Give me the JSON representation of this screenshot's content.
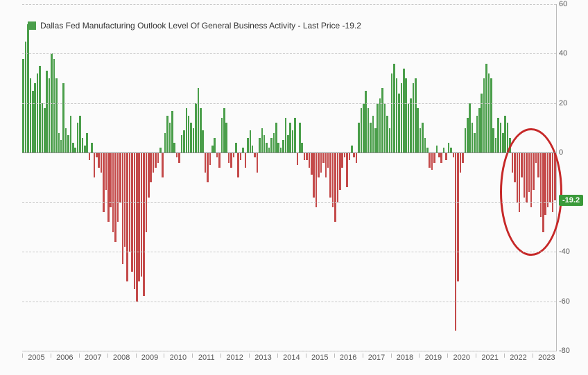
{
  "chart": {
    "type": "bar",
    "title_legend": "Dallas Fed Manufacturing Outlook Level Of General Business Activity - Last Price  -19.2",
    "legend_fontsize": 12,
    "background_color": "#fbfbfb",
    "grid_color": "#c8c8c8",
    "axis_color": "#bbbbbb",
    "text_color": "#555555",
    "positive_color": "#4a9e4a",
    "negative_color": "#c44a4a",
    "callout_color": "#c62828",
    "last_price_bg": "#3a9a3a",
    "last_price_value": "-19.2",
    "y_axis": {
      "min": -80,
      "max": 60,
      "step": 20,
      "ticks": [
        60,
        40,
        20,
        0,
        -20,
        -40,
        -60,
        -80
      ]
    },
    "x_axis": {
      "labels": [
        "2005",
        "2006",
        "2007",
        "2008",
        "2009",
        "2010",
        "2011",
        "2012",
        "2013",
        "2014",
        "2015",
        "2016",
        "2017",
        "2018",
        "2019",
        "2020",
        "2021",
        "2022",
        "2023"
      ]
    },
    "callout_ellipse": {
      "center_year_start": 2022,
      "center_year_end": 2023.75,
      "center_value": -15,
      "radius_y_value": 25
    },
    "values": [
      38,
      45,
      52,
      30,
      25,
      28,
      32,
      35,
      20,
      18,
      33,
      30,
      40,
      38,
      30,
      8,
      5,
      28,
      10,
      7,
      15,
      4,
      2,
      12,
      15,
      6,
      3,
      8,
      -3,
      4,
      -10,
      -2,
      -6,
      -8,
      -24,
      -15,
      -28,
      -22,
      -32,
      -36,
      -28,
      -20,
      -45,
      -38,
      -52,
      -40,
      -48,
      -55,
      -60,
      -52,
      -50,
      -58,
      -32,
      -18,
      -12,
      -8,
      -6,
      -4,
      2,
      -10,
      8,
      15,
      12,
      17,
      4,
      -2,
      -4,
      7,
      9,
      18,
      15,
      12,
      10,
      20,
      26,
      18,
      9,
      -8,
      -12,
      -5,
      3,
      6,
      -2,
      -6,
      14,
      18,
      12,
      -4,
      -6,
      -2,
      4,
      -10,
      -3,
      2,
      -6,
      6,
      9,
      3,
      -2,
      -8,
      6,
      10,
      7,
      4,
      2,
      6,
      8,
      12,
      4,
      2,
      5,
      14,
      7,
      12,
      9,
      14,
      -5,
      12,
      4,
      -3,
      -3,
      -6,
      -9,
      -18,
      -22,
      -10,
      -8,
      -4,
      -10,
      -6,
      -18,
      -22,
      -28,
      -20,
      -15,
      -6,
      -2,
      -14,
      -3,
      3,
      -2,
      -4,
      12,
      18,
      20,
      25,
      18,
      12,
      15,
      10,
      20,
      22,
      26,
      20,
      15,
      10,
      32,
      36,
      30,
      24,
      28,
      34,
      30,
      20,
      22,
      28,
      30,
      18,
      10,
      12,
      6,
      2,
      -6,
      -7,
      -4,
      3,
      -2,
      -4,
      2,
      -3,
      4,
      2,
      -2,
      -72,
      -52,
      -8,
      -4,
      10,
      14,
      20,
      12,
      8,
      15,
      18,
      24,
      30,
      36,
      32,
      30,
      10,
      6,
      14,
      12,
      8,
      15,
      12,
      6,
      -8,
      -12,
      -20,
      -24,
      -10,
      -18,
      -20,
      -16,
      -22,
      -15,
      -4,
      -10,
      -26,
      -32,
      -25,
      -22,
      -20,
      -24,
      -19.2
    ]
  }
}
